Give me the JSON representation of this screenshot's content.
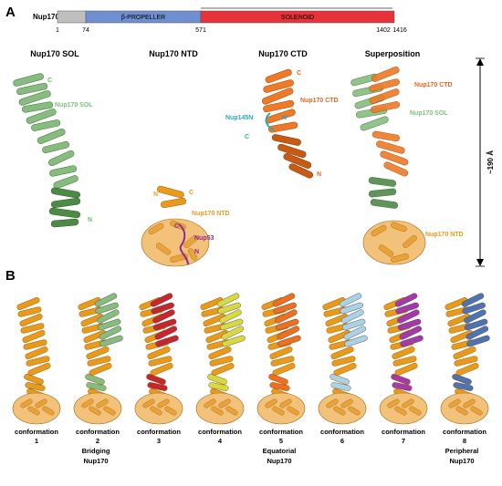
{
  "panel_a": {
    "letter": "A",
    "protein_label": "Nup170",
    "domain_bar": {
      "ticks": [
        "1",
        "74",
        "571",
        "1402",
        "1416"
      ],
      "domains": [
        {
          "label": "",
          "color": "#bfbfbf"
        },
        {
          "label": "β-PROPELLER",
          "color": "#6f8fd0"
        },
        {
          "label": "SOLENOID",
          "color": "#e8323a"
        }
      ]
    },
    "structures": [
      {
        "title": "Nup170 SOL",
        "labels": [
          {
            "text": "C",
            "color": "#6fb86f"
          },
          {
            "text": "Nup170 SOL",
            "color": "#7cc07c"
          },
          {
            "text": "N",
            "color": "#6fb86f"
          }
        ]
      },
      {
        "title": "Nup170 NTD",
        "labels": [
          {
            "text": "N",
            "color": "#e79a1c"
          },
          {
            "text": "C",
            "color": "#e79a1c"
          },
          {
            "text": "Nup170 NTD",
            "color": "#e79a1c"
          },
          {
            "text": "C",
            "color": "#8e2a93"
          },
          {
            "text": "Nup53",
            "color": "#8e2a93"
          },
          {
            "text": "N",
            "color": "#8e2a93"
          }
        ]
      },
      {
        "title": "Nup170 CTD",
        "labels": [
          {
            "text": "C",
            "color": "#e8661e"
          },
          {
            "text": "Nup170 CTD",
            "color": "#e8661e"
          },
          {
            "text": "Nup145N",
            "color": "#2aa8b8"
          },
          {
            "text": "N",
            "color": "#2aa8b8"
          },
          {
            "text": "C",
            "color": "#2aa8b8"
          },
          {
            "text": "N",
            "color": "#e8661e"
          }
        ]
      },
      {
        "title": "Superposition",
        "labels": [
          {
            "text": "Nup170 CTD",
            "color": "#e8661e"
          },
          {
            "text": "Nup170 SOL",
            "color": "#7cc07c"
          },
          {
            "text": "Nup170 NTD",
            "color": "#e79a1c"
          }
        ]
      }
    ],
    "scale_label": "~190 Å"
  },
  "panel_b": {
    "letter": "B",
    "conformations": [
      {
        "label": "conformation",
        "number": "1",
        "accent": "#e79a1c"
      },
      {
        "label": "conformation",
        "number": "2",
        "accent": "#86bd7e"
      },
      {
        "label": "conformation",
        "number": "3",
        "accent": "#c8262e"
      },
      {
        "label": "conformation",
        "number": "4",
        "accent": "#d8d843"
      },
      {
        "label": "conformation",
        "number": "5",
        "accent": "#ee6f1f"
      },
      {
        "label": "conformation",
        "number": "6",
        "accent": "#a9d2e6"
      },
      {
        "label": "conformation",
        "number": "7",
        "accent": "#a33aa7"
      },
      {
        "label": "conformation",
        "number": "8",
        "accent": "#4f72b0"
      }
    ],
    "groups": [
      {
        "line1": "Bridging",
        "line2": "Nup170"
      },
      {
        "line1": "Equatorial",
        "line2": "Nup170"
      },
      {
        "line1": "Peripheral",
        "line2": "Nup170"
      }
    ]
  }
}
